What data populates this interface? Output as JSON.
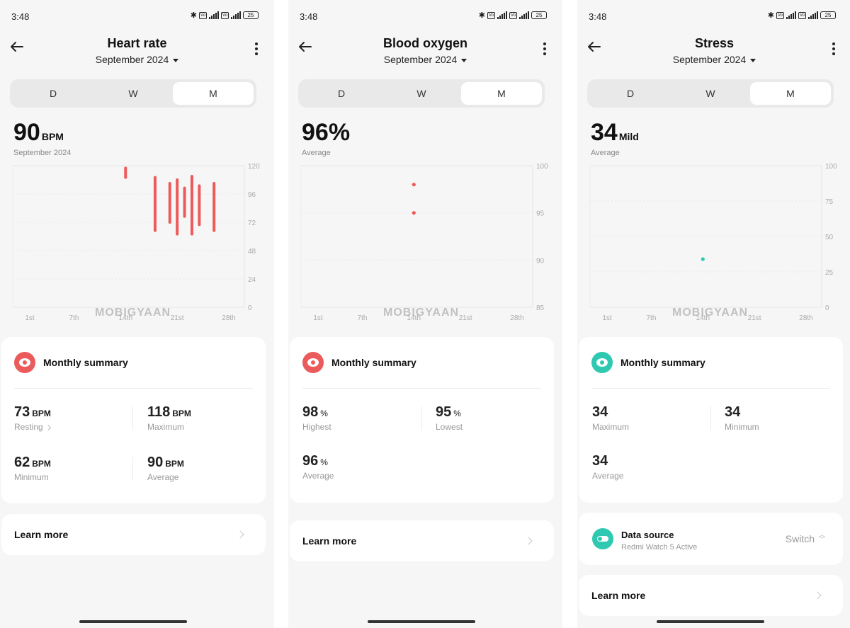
{
  "watermark": "MOBIGYAAN",
  "panels": [
    {
      "status": {
        "time": "3:48",
        "battery": "25"
      },
      "title": "Heart rate",
      "month": "September 2024",
      "tabs": [
        "D",
        "W",
        "M"
      ],
      "big_value": "90",
      "big_unit": "BPM",
      "big_sub": "September 2024",
      "chart": {
        "y_ticks": [
          "120",
          "96",
          "72",
          "48",
          "24",
          "0"
        ],
        "x_ticks": [
          "1st",
          "7th",
          "14th",
          "21st",
          "28th"
        ]
      },
      "summary": {
        "label": "Monthly summary",
        "stats": [
          {
            "value": "73",
            "unit": "BPM",
            "label": "Resting"
          },
          {
            "value": "118",
            "unit": "BPM",
            "label": "Maximum"
          },
          {
            "value": "62",
            "unit": "BPM",
            "label": "Minimum"
          },
          {
            "value": "90",
            "unit": "BPM",
            "label": "Average"
          }
        ]
      },
      "learn_more": "Learn more"
    },
    {
      "status": {
        "time": "3:48",
        "battery": "25"
      },
      "title": "Blood oxygen",
      "month": "September 2024",
      "tabs": [
        "D",
        "W",
        "M"
      ],
      "big_value": "96%",
      "big_unit": "",
      "big_sub": "Average",
      "chart": {
        "y_ticks": [
          "100",
          "95",
          "90",
          "85"
        ],
        "x_ticks": [
          "1st",
          "7th",
          "14th",
          "21st",
          "28th"
        ]
      },
      "summary": {
        "label": "Monthly summary",
        "stats": [
          {
            "value": "98",
            "unit": "%",
            "label": "Highest"
          },
          {
            "value": "95",
            "unit": "%",
            "label": "Lowest"
          },
          {
            "value": "96",
            "unit": "%",
            "label": "Average"
          }
        ]
      },
      "learn_more": "Learn more"
    },
    {
      "status": {
        "time": "3:48",
        "battery": "25"
      },
      "title": "Stress",
      "month": "September 2024",
      "tabs": [
        "D",
        "W",
        "M"
      ],
      "big_value": "34",
      "big_unit": "Mild",
      "big_sub": "Average",
      "chart": {
        "y_ticks": [
          "100",
          "75",
          "50",
          "25",
          "0"
        ],
        "x_ticks": [
          "1st",
          "7th",
          "14th",
          "21st",
          "28th"
        ]
      },
      "summary": {
        "label": "Monthly summary",
        "stats": [
          {
            "value": "34",
            "unit": "",
            "label": "Maximum"
          },
          {
            "value": "34",
            "unit": "",
            "label": "Minimum"
          },
          {
            "value": "34",
            "unit": "",
            "label": "Average"
          }
        ]
      },
      "data_source": {
        "label": "Data source",
        "device": "Redmi Watch 5 Active",
        "action": "Switch"
      },
      "learn_more": "Learn more"
    }
  ],
  "colors": {
    "heart": "#ec5b5b",
    "stress": "#2fc9b2",
    "bg": "#f6f6f6"
  },
  "chart_data": [
    {
      "type": "bar",
      "title": "Heart rate",
      "x_ticks": [
        "1st",
        "7th",
        "14th",
        "21st",
        "28th"
      ],
      "ylim": [
        0,
        120
      ],
      "series": [
        {
          "ranges": [
            {
              "day": 14,
              "min": 110,
              "max": 118
            },
            {
              "day": 18,
              "min": 65,
              "max": 110
            },
            {
              "day": 20,
              "min": 72,
              "max": 105
            },
            {
              "day": 21,
              "min": 62,
              "max": 108
            },
            {
              "day": 22,
              "min": 77,
              "max": 101
            },
            {
              "day": 23,
              "min": 62,
              "max": 111
            },
            {
              "day": 24,
              "min": 70,
              "max": 103
            },
            {
              "day": 26,
              "min": 65,
              "max": 105
            }
          ]
        }
      ]
    },
    {
      "type": "scatter",
      "title": "Blood oxygen",
      "x_ticks": [
        "1st",
        "7th",
        "14th",
        "21st",
        "28th"
      ],
      "ylim": [
        85,
        100
      ],
      "series": [
        {
          "points": [
            {
              "day": 14,
              "value": 98
            },
            {
              "day": 14,
              "value": 95
            }
          ]
        }
      ]
    },
    {
      "type": "scatter",
      "title": "Stress",
      "x_ticks": [
        "1st",
        "7th",
        "14th",
        "21st",
        "28th"
      ],
      "ylim": [
        0,
        100
      ],
      "series": [
        {
          "points": [
            {
              "day": 14,
              "value": 34
            }
          ]
        }
      ]
    }
  ]
}
